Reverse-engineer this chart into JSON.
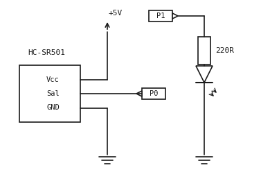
{
  "bg_color": "#ffffff",
  "labels": {
    "hc_sr501": "HC-SR501",
    "vcc": "Vcc",
    "sal": "Sal",
    "gnd": "GND",
    "plus5v": "+5V",
    "p0": "P0",
    "p1": "P1",
    "r220": "220R"
  },
  "colors": {
    "line": "#1a1a1a",
    "text": "#1a1a1a"
  },
  "lw": 1.2
}
